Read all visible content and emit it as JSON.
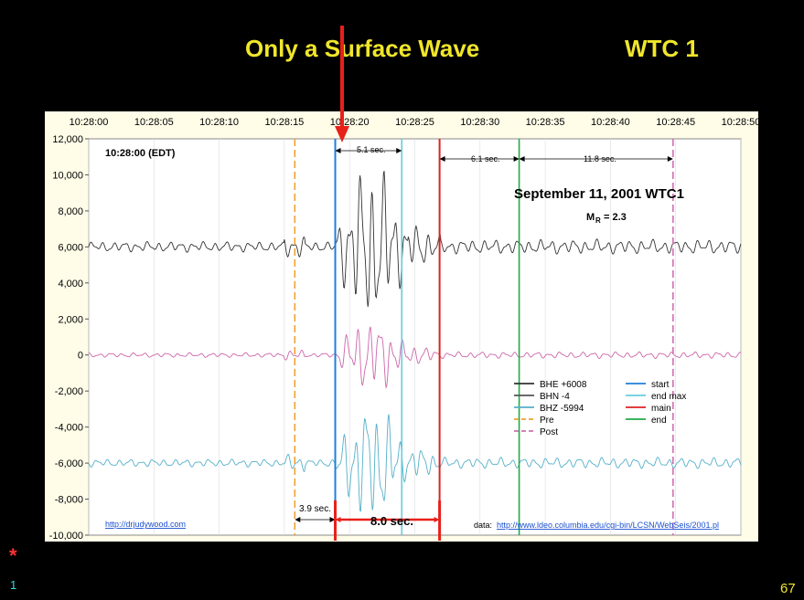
{
  "slide": {
    "title_left": "Only a  Surface Wave",
    "title_right": "WTC 1",
    "corner_marker": "*",
    "slide_number_left": "1",
    "slide_number_right": "67"
  },
  "chart_data": {
    "type": "line",
    "title": "September 11, 2001 WTC1",
    "subtitle": "= 2.3",
    "magnitude_label": "M",
    "magnitude_sub": "R",
    "time_label": "10:28:00 (EDT)",
    "x_tick_labels": [
      "10:28:00",
      "10:28:05",
      "10:28:10",
      "10:28:15",
      "10:28:20",
      "10:28:25",
      "10:28:30",
      "10:28:35",
      "10:28:40",
      "10:28:45",
      "10:28:50"
    ],
    "x_range_seconds": [
      0,
      50
    ],
    "y_range": [
      -10000,
      12000
    ],
    "y_ticks": [
      12000,
      10000,
      8000,
      6000,
      4000,
      2000,
      0,
      -2000,
      -4000,
      -6000,
      -8000,
      -10000
    ],
    "y_tick_labels": [
      "12,000",
      "10,000",
      "8,000",
      "6,000",
      "4,000",
      "2,000",
      "0",
      "-2,000",
      "-4,000",
      "-6,000",
      "-8,000",
      "-10,000"
    ],
    "series": [
      {
        "name": "BHE +6008",
        "color": "#333333",
        "baseline": 6008
      },
      {
        "name": "BHN -4",
        "color": "#cc66aa",
        "baseline": -4
      },
      {
        "name": "BHZ  -5994",
        "color": "#55b0c8",
        "baseline": -5994
      }
    ],
    "markers": [
      {
        "name": "Pre",
        "color": "#f0a030",
        "dash": true,
        "x": "10:28:15.8"
      },
      {
        "name": "start",
        "color": "#1f7fd8",
        "dash": false,
        "x": "10:28:18.9"
      },
      {
        "name": "end max",
        "color": "#66ccdd",
        "dash": false,
        "x": "10:28:24.0"
      },
      {
        "name": "main",
        "color": "#dd2222",
        "dash": false,
        "x": "10:28:26.9"
      },
      {
        "name": "end",
        "color": "#22aa44",
        "dash": false,
        "x": "10:28:33.0"
      },
      {
        "name": "Post",
        "color": "#d070b0",
        "dash": true,
        "x": "10:28:44.8"
      }
    ],
    "annotations": {
      "interval_1": "5.1 sec.",
      "interval_2": "6.1 sec.",
      "interval_3": "11.8 sec.",
      "interval_4": "3.9 sec.",
      "interval_5": "8.0 sec."
    },
    "legend_placement": "lower-right",
    "grid": "vertical",
    "source_left": "http://drjudywood.com",
    "source_right_label": "data:",
    "source_right_link": "http://www.ldeo.columbia.edu/cgi-bin/LCSN/WebSeis/2001.pl"
  }
}
